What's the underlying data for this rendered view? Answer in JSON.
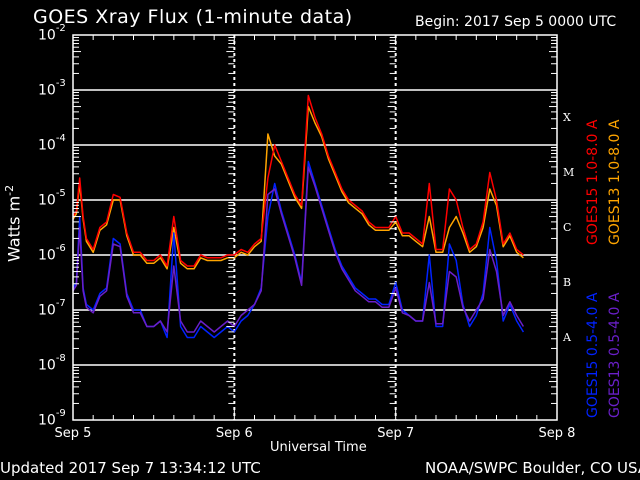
{
  "header": {
    "title": "GOES Xray Flux (1-minute data)",
    "begin": "Begin:  2017 Sep 5 0000 UTC"
  },
  "footer": {
    "updated": "Updated 2017 Sep  7 13:34:12 UTC",
    "credit": "NOAA/SWPC Boulder, CO USA"
  },
  "axes": {
    "xlabel": "Universal Time",
    "ylabel_base": "Watts m",
    "ylabel_exp": "-2",
    "xticks": [
      "Sep 5",
      "Sep 6",
      "Sep 7",
      "Sep 8"
    ],
    "yticks": [
      {
        "base": "10",
        "exp": "-2"
      },
      {
        "base": "10",
        "exp": "-3"
      },
      {
        "base": "10",
        "exp": "-4"
      },
      {
        "base": "10",
        "exp": "-5"
      },
      {
        "base": "10",
        "exp": "-6"
      },
      {
        "base": "10",
        "exp": "-7"
      },
      {
        "base": "10",
        "exp": "-8"
      },
      {
        "base": "10",
        "exp": "-9"
      }
    ],
    "flare_classes": [
      "X",
      "M",
      "C",
      "B",
      "A"
    ]
  },
  "legend": [
    {
      "label": "GOES15 1.0-8.0 A",
      "color": "#ff0000"
    },
    {
      "label": "GOES13 1.0-8.0 A",
      "color": "#ffa500"
    },
    {
      "label": "GOES15 0.5-4.0 A",
      "color": "#0022ff"
    },
    {
      "label": "GOES13 0.5-4.0 A",
      "color": "#6a1fc9"
    }
  ],
  "colors": {
    "background": "#000000",
    "axes": "#ffffff",
    "grid": "#ffffff"
  },
  "chart_data": {
    "type": "line",
    "title": "GOES Xray Flux (1-minute data)",
    "xlabel": "Universal Time",
    "ylabel": "Watts m^-2",
    "yscale": "log",
    "ylim": [
      1e-09,
      0.01
    ],
    "xlim_hours": [
      0,
      72
    ],
    "x_unit": "hours since 2017 Sep 5 0000 UTC",
    "categories": [
      "Sep 5",
      "Sep 6",
      "Sep 7",
      "Sep 8"
    ],
    "grid": "horizontal at each decade 1e-3..1e-8, dotted vertical at day boundaries",
    "legend_position": "right, rotated",
    "annotations": [
      "X",
      "M",
      "C",
      "B",
      "A"
    ],
    "x": [
      0,
      0.5,
      1,
      1.5,
      2,
      3,
      4,
      5,
      6,
      7,
      8,
      9,
      10,
      11,
      12,
      13,
      14,
      15,
      16,
      17,
      18,
      19,
      20,
      21,
      22,
      23,
      24,
      25,
      26,
      27,
      28,
      29,
      30,
      31,
      32,
      33,
      34,
      35,
      36,
      37,
      38,
      39,
      40,
      41,
      42,
      43,
      44,
      45,
      46,
      47,
      48,
      49,
      50,
      51,
      52,
      53,
      54,
      55,
      56,
      57,
      58,
      59,
      60,
      61,
      62,
      63,
      64,
      65,
      66,
      67,
      68,
      69,
      70,
      71,
      72
    ],
    "series": [
      {
        "name": "GOES15 1.0-8.0 A",
        "color": "#ff0000",
        "log10_values": [
          -5.3,
          -5.2,
          -4.6,
          -5.3,
          -5.7,
          -5.9,
          -5.5,
          -5.4,
          -4.9,
          -4.95,
          -5.6,
          -5.95,
          -5.95,
          -6.1,
          -6.1,
          -6.0,
          -6.2,
          -5.3,
          -6.1,
          -6.2,
          -6.2,
          -6.0,
          -6.05,
          -6.05,
          -6.05,
          -6.0,
          -6.0,
          -5.9,
          -5.95,
          -5.8,
          -5.7,
          -4.6,
          -4.0,
          -4.3,
          -4.6,
          -4.9,
          -5.1,
          -3.1,
          -3.5,
          -3.8,
          -4.2,
          -4.5,
          -4.8,
          -5.0,
          -5.1,
          -5.2,
          -5.4,
          -5.5,
          -5.5,
          -5.5,
          -5.3,
          -5.6,
          -5.6,
          -5.7,
          -5.8,
          -4.7,
          -5.9,
          -5.9,
          -4.8,
          -5.0,
          -5.5,
          -5.9,
          -5.8,
          -5.4,
          -4.5,
          -5.0,
          -5.8,
          -5.6,
          -5.9,
          -6.0,
          null,
          null,
          null,
          null,
          null
        ]
      },
      {
        "name": "GOES13 1.0-8.0 A",
        "color": "#ffa500",
        "log10_values": [
          -5.35,
          -5.25,
          -4.7,
          -5.35,
          -5.75,
          -5.95,
          -5.55,
          -5.45,
          -5.0,
          -5.0,
          -5.65,
          -6.0,
          -6.0,
          -6.15,
          -6.15,
          -6.05,
          -6.25,
          -5.5,
          -6.15,
          -6.25,
          -6.25,
          -6.05,
          -6.1,
          -6.1,
          -6.1,
          -6.05,
          -6.05,
          -5.95,
          -6.0,
          -5.85,
          -5.75,
          -3.8,
          -4.2,
          -4.35,
          -4.65,
          -4.95,
          -5.15,
          -3.3,
          -3.6,
          -3.85,
          -4.25,
          -4.55,
          -4.85,
          -5.05,
          -5.15,
          -5.25,
          -5.45,
          -5.55,
          -5.55,
          -5.55,
          -5.4,
          -5.65,
          -5.65,
          -5.75,
          -5.85,
          -5.3,
          -5.95,
          -5.95,
          -5.5,
          -5.3,
          -5.6,
          -5.95,
          -5.85,
          -5.5,
          -4.8,
          -5.1,
          -5.85,
          -5.65,
          -5.95,
          -6.05,
          null,
          null,
          null,
          null,
          null
        ]
      },
      {
        "name": "GOES15 0.5-4.0 A",
        "color": "#0022ff",
        "log10_values": [
          -6.6,
          -6.5,
          -5.3,
          -6.6,
          -6.9,
          -7.0,
          -6.7,
          -6.6,
          -5.7,
          -5.8,
          -6.7,
          -7.0,
          -7.0,
          -7.3,
          -7.3,
          -7.2,
          -7.5,
          -5.6,
          -7.3,
          -7.5,
          -7.5,
          -7.3,
          -7.4,
          -7.5,
          -7.4,
          -7.3,
          -7.4,
          -7.2,
          -7.1,
          -6.9,
          -6.6,
          -5.3,
          -4.7,
          -5.2,
          -5.6,
          -6.0,
          -6.5,
          -4.3,
          -4.7,
          -5.1,
          -5.5,
          -5.9,
          -6.2,
          -6.4,
          -6.6,
          -6.7,
          -6.8,
          -6.8,
          -6.9,
          -6.9,
          -6.5,
          -7.0,
          -7.1,
          -7.2,
          -7.2,
          -6.0,
          -7.3,
          -7.3,
          -5.8,
          -6.1,
          -6.9,
          -7.3,
          -7.1,
          -6.7,
          -5.5,
          -6.1,
          -7.2,
          -6.9,
          -7.2,
          -7.4,
          null,
          null,
          null,
          null,
          null
        ]
      },
      {
        "name": "GOES13 0.5-4.0 A",
        "color": "#6a1fc9",
        "log10_values": [
          -6.65,
          -6.55,
          -5.5,
          -6.65,
          -6.95,
          -7.05,
          -6.75,
          -6.65,
          -5.8,
          -5.85,
          -6.75,
          -7.05,
          -7.05,
          -7.3,
          -7.3,
          -7.2,
          -7.4,
          -6.2,
          -7.2,
          -7.4,
          -7.4,
          -7.2,
          -7.3,
          -7.4,
          -7.3,
          -7.2,
          -7.3,
          -7.1,
          -7.0,
          -6.9,
          -6.65,
          -4.9,
          -4.8,
          -5.25,
          -5.65,
          -6.05,
          -6.55,
          -4.4,
          -4.75,
          -5.15,
          -5.55,
          -5.95,
          -6.25,
          -6.45,
          -6.65,
          -6.75,
          -6.85,
          -6.85,
          -6.95,
          -6.95,
          -6.6,
          -7.05,
          -7.1,
          -7.2,
          -7.2,
          -6.5,
          -7.25,
          -7.25,
          -6.3,
          -6.4,
          -6.95,
          -7.2,
          -7.0,
          -6.8,
          -5.9,
          -6.3,
          -7.1,
          -6.85,
          -7.1,
          -7.3,
          null,
          null,
          null,
          null,
          null
        ]
      }
    ]
  }
}
